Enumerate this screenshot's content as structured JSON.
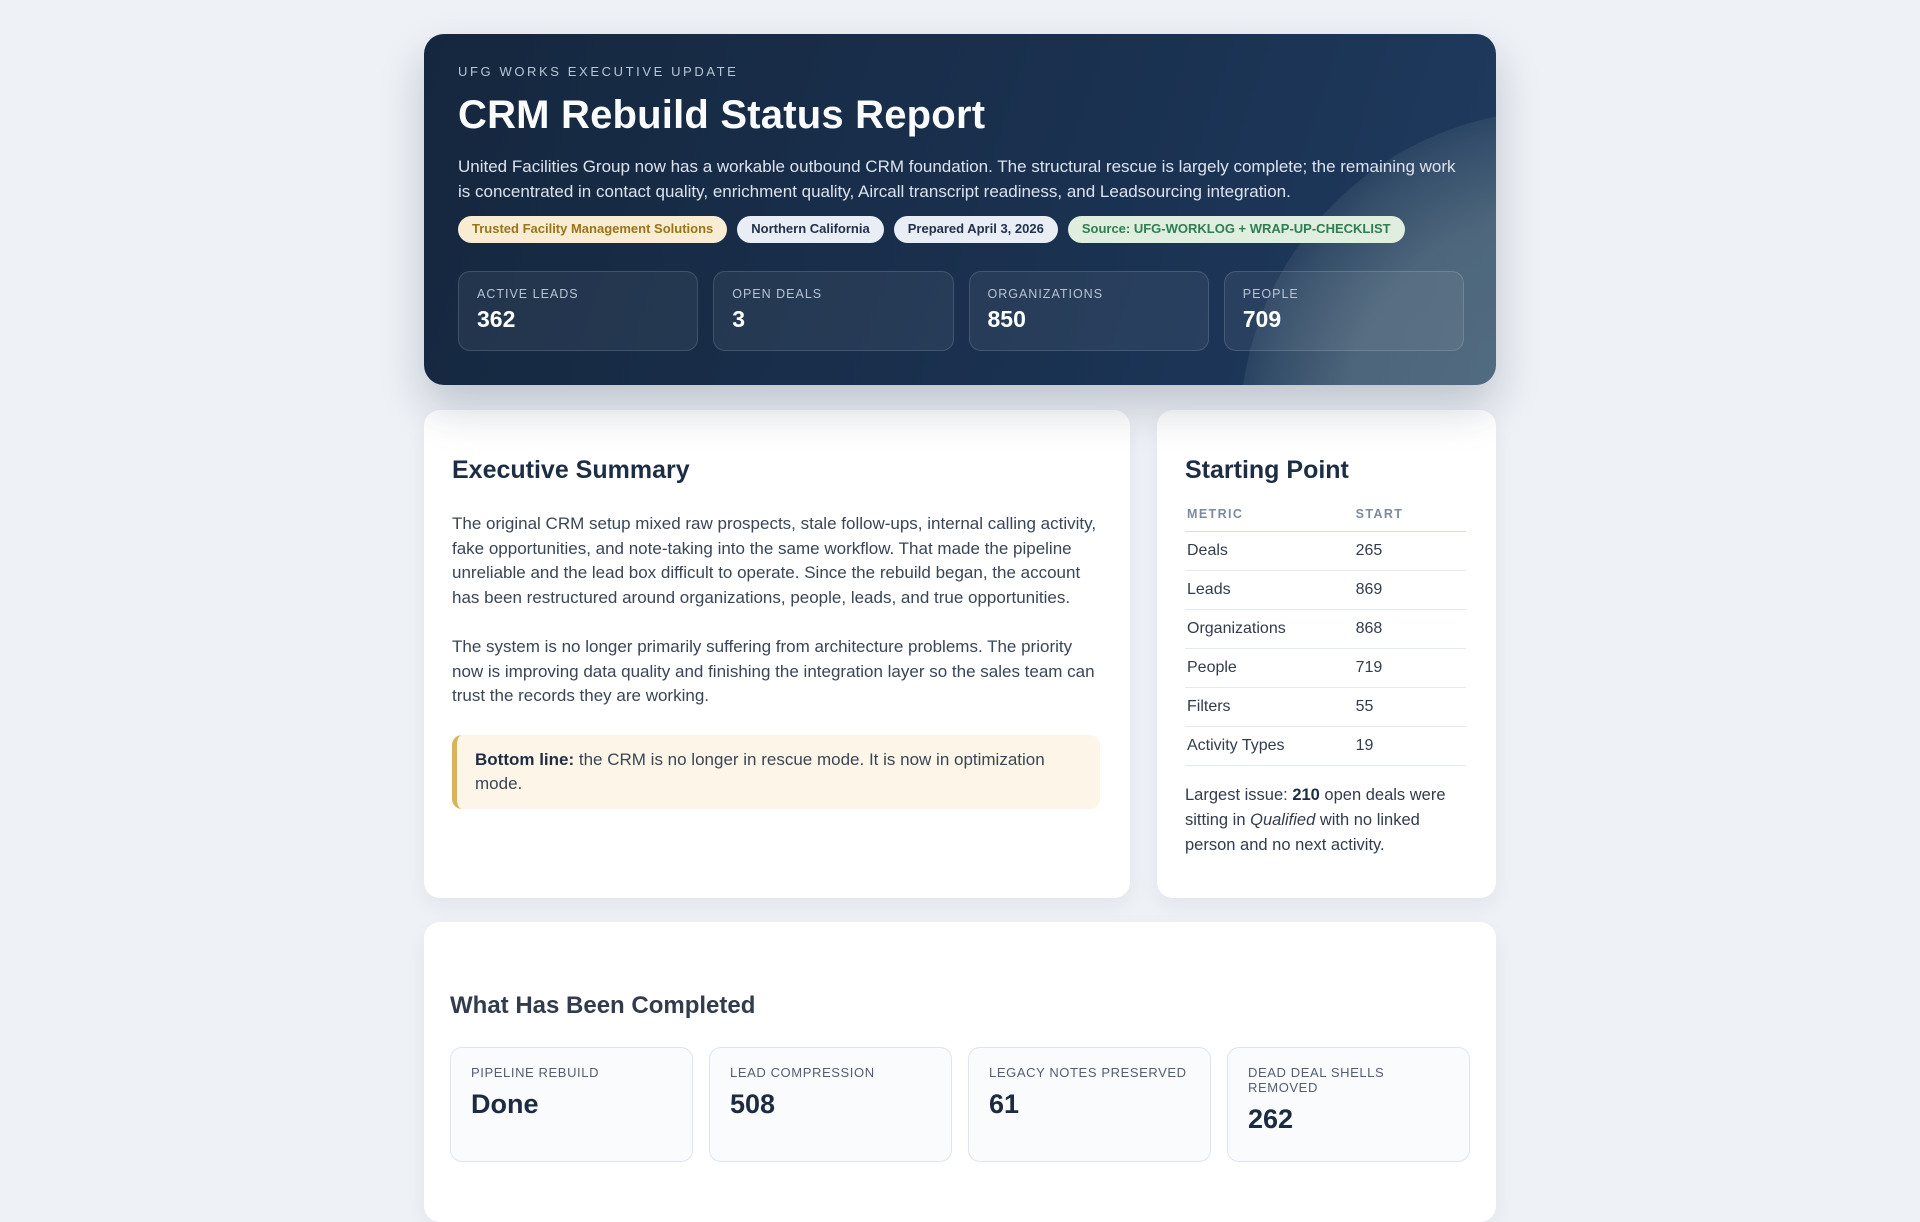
{
  "hero": {
    "eyebrow": "UFG WORKS EXECUTIVE UPDATE",
    "title": "CRM Rebuild Status Report",
    "intro": "United Facilities Group now has a workable outbound CRM foundation. The structural rescue is largely complete; the remaining work is concentrated in contact quality, enrichment quality, Aircall transcript readiness, and Leadsourcing integration.",
    "badges": [
      {
        "label": "Trusted Facility Management Solutions"
      },
      {
        "label": "Northern California"
      },
      {
        "label": "Prepared April 3, 2026"
      },
      {
        "label": "Source: UFG-WORKLOG + WRAP-UP-CHECKLIST"
      }
    ],
    "stats": [
      {
        "label": "ACTIVE LEADS",
        "value": "362"
      },
      {
        "label": "OPEN DEALS",
        "value": "3"
      },
      {
        "label": "ORGANIZATIONS",
        "value": "850"
      },
      {
        "label": "PEOPLE",
        "value": "709"
      }
    ]
  },
  "executive_summary": {
    "heading": "Executive Summary",
    "paragraphs": [
      "The original CRM setup mixed raw prospects, stale follow-ups, internal calling activity, fake opportunities, and note-taking into the same workflow. That made the pipeline unreliable and the lead box difficult to operate. Since the rebuild began, the account has been restructured around organizations, people, leads, and true opportunities.",
      "The system is no longer primarily suffering from architecture problems. The priority now is improving data quality and finishing the integration layer so the sales team can trust the records they are working."
    ],
    "callout": {
      "label": "Bottom line:",
      "text": " the CRM is no longer in rescue mode. It is now in optimization mode."
    }
  },
  "starting_point": {
    "heading": "Starting Point",
    "table": {
      "columns": [
        "METRIC",
        "START"
      ],
      "rows": [
        [
          "Deals",
          "265"
        ],
        [
          "Leads",
          "869"
        ],
        [
          "Organizations",
          "868"
        ],
        [
          "People",
          "719"
        ],
        [
          "Filters",
          "55"
        ],
        [
          "Activity Types",
          "19"
        ]
      ]
    },
    "note": {
      "prefix": "Largest issue: ",
      "highlight": "210",
      "middle": " open deals were sitting in ",
      "emphasis": "Qualified",
      "suffix": " with no linked person and no next activity."
    }
  },
  "completed": {
    "heading": "What Has Been Completed",
    "cards": [
      {
        "label": "PIPELINE REBUILD",
        "value": "Done"
      },
      {
        "label": "LEAD COMPRESSION",
        "value": "508"
      },
      {
        "label": "LEGACY NOTES PRESERVED",
        "value": "61"
      },
      {
        "label": "DEAD DEAL SHELLS REMOVED",
        "value": "262"
      }
    ]
  },
  "colors": {
    "page_background": "#eef1f6",
    "hero_gradient_from": "#15273e",
    "hero_gradient_to": "#1f3b60",
    "accent_gold": "#d9b35e",
    "callout_background": "#fdf5e7",
    "badge_gold_text": "#9a7418",
    "badge_green_text": "#2f7d52",
    "heading_navy": "#1d2d44"
  }
}
